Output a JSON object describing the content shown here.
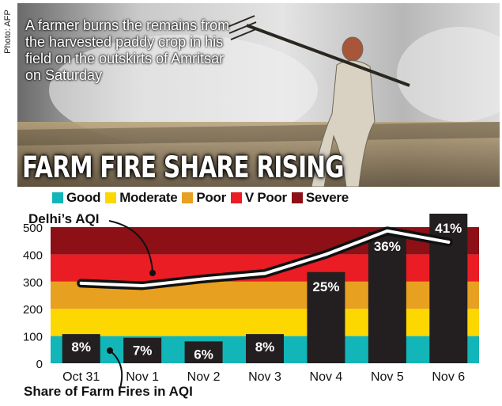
{
  "photo_credit": "Photo: AFP",
  "caption": "A farmer burns the remains from the harvested paddy crop in his field on the outskirts of Amritsar on Saturday",
  "headline": "FARM FIRE SHARE RISING",
  "colors": {
    "good": "#12b5b8",
    "moderate": "#fdd700",
    "poor": "#e8a020",
    "v_poor": "#ea1c24",
    "severe": "#8c1015",
    "bar": "#231f20",
    "line_outer": "#111111",
    "line_inner": "#ffffff"
  },
  "chart_data": {
    "type": "bar",
    "title": "",
    "categories": [
      "Oct 31",
      "Nov 1",
      "Nov 2",
      "Nov 3",
      "Nov 4",
      "Nov 5",
      "Nov 6"
    ],
    "ylim": [
      0,
      500
    ],
    "yticks": [
      0,
      100,
      200,
      300,
      400,
      500
    ],
    "aqi_bands": [
      {
        "name": "Good",
        "from": 0,
        "to": 100
      },
      {
        "name": "Moderate",
        "from": 100,
        "to": 200
      },
      {
        "name": "Poor",
        "from": 200,
        "to": 300
      },
      {
        "name": "V Poor",
        "from": 300,
        "to": 400
      },
      {
        "name": "Severe",
        "from": 400,
        "to": 500
      }
    ],
    "series": [
      {
        "name": "Share of Farm Fires in AQI",
        "type": "bar",
        "values": [
          8,
          7,
          6,
          8,
          25,
          36,
          41
        ],
        "labels": [
          "8%",
          "7%",
          "6%",
          "8%",
          "25%",
          "36%",
          "41%"
        ]
      },
      {
        "name": "Delhi's AQI",
        "type": "line",
        "values": [
          294,
          285,
          310,
          330,
          400,
          486,
          445
        ]
      }
    ],
    "legend": [
      "Good",
      "Moderate",
      "Poor",
      "V Poor",
      "Severe"
    ],
    "legend_position": "top",
    "annotations": {
      "line_label": "Delhi’s AQI",
      "bar_label": "Share of Farm Fires in AQI"
    }
  }
}
